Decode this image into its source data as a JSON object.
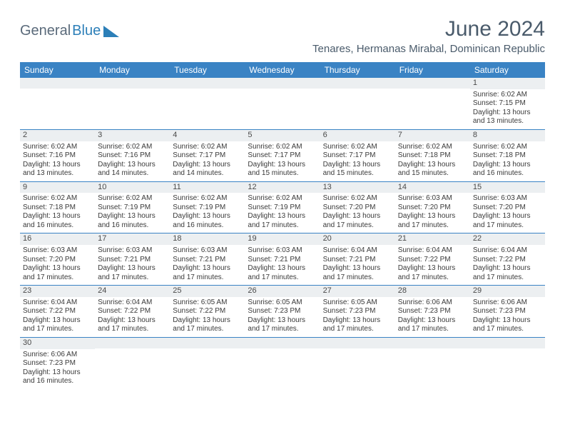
{
  "logo": {
    "text1": "General",
    "text2": "Blue",
    "triangle_color": "#2c7fb8"
  },
  "title": "June 2024",
  "location": "Tenares, Hermanas Mirabal, Dominican Republic",
  "header_bg": "#3a83c4",
  "header_fg": "#ffffff",
  "daynum_bg": "#eceff1",
  "border_color": "#3a83c4",
  "weekdays": [
    "Sunday",
    "Monday",
    "Tuesday",
    "Wednesday",
    "Thursday",
    "Friday",
    "Saturday"
  ],
  "weeks": [
    [
      {
        "n": "",
        "lines": []
      },
      {
        "n": "",
        "lines": []
      },
      {
        "n": "",
        "lines": []
      },
      {
        "n": "",
        "lines": []
      },
      {
        "n": "",
        "lines": []
      },
      {
        "n": "",
        "lines": []
      },
      {
        "n": "1",
        "lines": [
          "Sunrise: 6:02 AM",
          "Sunset: 7:15 PM",
          "Daylight: 13 hours and 13 minutes."
        ]
      }
    ],
    [
      {
        "n": "2",
        "lines": [
          "Sunrise: 6:02 AM",
          "Sunset: 7:16 PM",
          "Daylight: 13 hours and 13 minutes."
        ]
      },
      {
        "n": "3",
        "lines": [
          "Sunrise: 6:02 AM",
          "Sunset: 7:16 PM",
          "Daylight: 13 hours and 14 minutes."
        ]
      },
      {
        "n": "4",
        "lines": [
          "Sunrise: 6:02 AM",
          "Sunset: 7:17 PM",
          "Daylight: 13 hours and 14 minutes."
        ]
      },
      {
        "n": "5",
        "lines": [
          "Sunrise: 6:02 AM",
          "Sunset: 7:17 PM",
          "Daylight: 13 hours and 15 minutes."
        ]
      },
      {
        "n": "6",
        "lines": [
          "Sunrise: 6:02 AM",
          "Sunset: 7:17 PM",
          "Daylight: 13 hours and 15 minutes."
        ]
      },
      {
        "n": "7",
        "lines": [
          "Sunrise: 6:02 AM",
          "Sunset: 7:18 PM",
          "Daylight: 13 hours and 15 minutes."
        ]
      },
      {
        "n": "8",
        "lines": [
          "Sunrise: 6:02 AM",
          "Sunset: 7:18 PM",
          "Daylight: 13 hours and 16 minutes."
        ]
      }
    ],
    [
      {
        "n": "9",
        "lines": [
          "Sunrise: 6:02 AM",
          "Sunset: 7:18 PM",
          "Daylight: 13 hours and 16 minutes."
        ]
      },
      {
        "n": "10",
        "lines": [
          "Sunrise: 6:02 AM",
          "Sunset: 7:19 PM",
          "Daylight: 13 hours and 16 minutes."
        ]
      },
      {
        "n": "11",
        "lines": [
          "Sunrise: 6:02 AM",
          "Sunset: 7:19 PM",
          "Daylight: 13 hours and 16 minutes."
        ]
      },
      {
        "n": "12",
        "lines": [
          "Sunrise: 6:02 AM",
          "Sunset: 7:19 PM",
          "Daylight: 13 hours and 17 minutes."
        ]
      },
      {
        "n": "13",
        "lines": [
          "Sunrise: 6:02 AM",
          "Sunset: 7:20 PM",
          "Daylight: 13 hours and 17 minutes."
        ]
      },
      {
        "n": "14",
        "lines": [
          "Sunrise: 6:03 AM",
          "Sunset: 7:20 PM",
          "Daylight: 13 hours and 17 minutes."
        ]
      },
      {
        "n": "15",
        "lines": [
          "Sunrise: 6:03 AM",
          "Sunset: 7:20 PM",
          "Daylight: 13 hours and 17 minutes."
        ]
      }
    ],
    [
      {
        "n": "16",
        "lines": [
          "Sunrise: 6:03 AM",
          "Sunset: 7:20 PM",
          "Daylight: 13 hours and 17 minutes."
        ]
      },
      {
        "n": "17",
        "lines": [
          "Sunrise: 6:03 AM",
          "Sunset: 7:21 PM",
          "Daylight: 13 hours and 17 minutes."
        ]
      },
      {
        "n": "18",
        "lines": [
          "Sunrise: 6:03 AM",
          "Sunset: 7:21 PM",
          "Daylight: 13 hours and 17 minutes."
        ]
      },
      {
        "n": "19",
        "lines": [
          "Sunrise: 6:03 AM",
          "Sunset: 7:21 PM",
          "Daylight: 13 hours and 17 minutes."
        ]
      },
      {
        "n": "20",
        "lines": [
          "Sunrise: 6:04 AM",
          "Sunset: 7:21 PM",
          "Daylight: 13 hours and 17 minutes."
        ]
      },
      {
        "n": "21",
        "lines": [
          "Sunrise: 6:04 AM",
          "Sunset: 7:22 PM",
          "Daylight: 13 hours and 17 minutes."
        ]
      },
      {
        "n": "22",
        "lines": [
          "Sunrise: 6:04 AM",
          "Sunset: 7:22 PM",
          "Daylight: 13 hours and 17 minutes."
        ]
      }
    ],
    [
      {
        "n": "23",
        "lines": [
          "Sunrise: 6:04 AM",
          "Sunset: 7:22 PM",
          "Daylight: 13 hours and 17 minutes."
        ]
      },
      {
        "n": "24",
        "lines": [
          "Sunrise: 6:04 AM",
          "Sunset: 7:22 PM",
          "Daylight: 13 hours and 17 minutes."
        ]
      },
      {
        "n": "25",
        "lines": [
          "Sunrise: 6:05 AM",
          "Sunset: 7:22 PM",
          "Daylight: 13 hours and 17 minutes."
        ]
      },
      {
        "n": "26",
        "lines": [
          "Sunrise: 6:05 AM",
          "Sunset: 7:23 PM",
          "Daylight: 13 hours and 17 minutes."
        ]
      },
      {
        "n": "27",
        "lines": [
          "Sunrise: 6:05 AM",
          "Sunset: 7:23 PM",
          "Daylight: 13 hours and 17 minutes."
        ]
      },
      {
        "n": "28",
        "lines": [
          "Sunrise: 6:06 AM",
          "Sunset: 7:23 PM",
          "Daylight: 13 hours and 17 minutes."
        ]
      },
      {
        "n": "29",
        "lines": [
          "Sunrise: 6:06 AM",
          "Sunset: 7:23 PM",
          "Daylight: 13 hours and 17 minutes."
        ]
      }
    ],
    [
      {
        "n": "30",
        "lines": [
          "Sunrise: 6:06 AM",
          "Sunset: 7:23 PM",
          "Daylight: 13 hours and 16 minutes."
        ]
      },
      {
        "n": "",
        "lines": []
      },
      {
        "n": "",
        "lines": []
      },
      {
        "n": "",
        "lines": []
      },
      {
        "n": "",
        "lines": []
      },
      {
        "n": "",
        "lines": []
      },
      {
        "n": "",
        "lines": []
      }
    ]
  ]
}
